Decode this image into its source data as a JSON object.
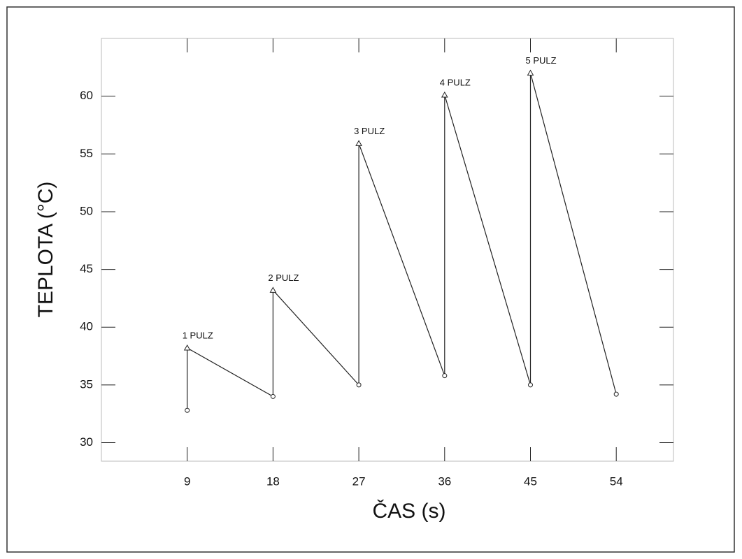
{
  "chart_data": {
    "type": "line",
    "x_label": "ČAS (s)",
    "y_label": "TEPLOTA (°C)",
    "x": [
      9,
      9,
      18,
      18,
      27,
      27,
      36,
      36,
      45,
      45,
      54
    ],
    "series": [
      {
        "color": "#222222",
        "values": [
          32.8,
          38.2,
          34.0,
          43.2,
          35.0,
          55.9,
          35.8,
          60.1,
          35.0,
          62.0,
          34.2
        ],
        "markers": [
          "circle",
          "triangle",
          "circle",
          "triangle",
          "circle",
          "triangle",
          "circle",
          "triangle",
          "circle",
          "triangle",
          "circle"
        ]
      }
    ],
    "annotations": [
      "1 PULZ",
      "2 PULZ",
      "3 PULZ",
      "4 PULZ",
      "5 PULZ"
    ],
    "xlim": [
      0,
      60
    ],
    "xticks": [
      9,
      18,
      27,
      36,
      45,
      54
    ],
    "ylim": [
      28.4,
      65
    ],
    "yticks": [
      30,
      35,
      40,
      45,
      50,
      55,
      60
    ]
  }
}
